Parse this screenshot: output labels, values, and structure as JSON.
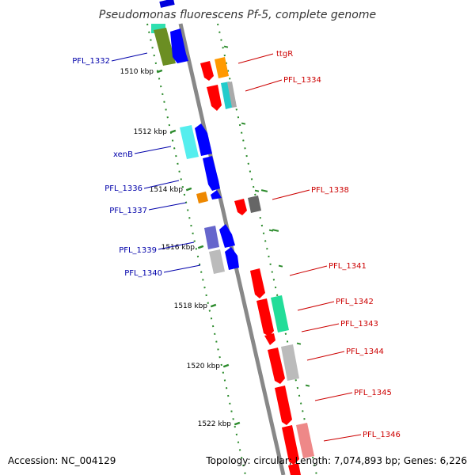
{
  "title": "Pseudomonas fluorescens Pf-5, complete genome",
  "footer": {
    "accession": "Accession: NC_004129",
    "summary": "Topology: circular; Length: 7,074,893 bp; Genes: 6,226"
  },
  "colors": {
    "backbone": "#888888",
    "dots": "#2a8a2a",
    "left_label": "#0000aa",
    "right_label": "#cc0000"
  },
  "scale_ticks": [
    {
      "label": "1510 kbp",
      "kbp": 1510
    },
    {
      "label": "1512 kbp",
      "kbp": 1512
    },
    {
      "label": "1514 kbp",
      "kbp": 1514
    },
    {
      "label": "1516 kbp",
      "kbp": 1516
    },
    {
      "label": "1518 kbp",
      "kbp": 1518
    },
    {
      "label": "1520 kbp",
      "kbp": 1520
    },
    {
      "label": "1522 kbp",
      "kbp": 1522
    }
  ],
  "left_labels": [
    {
      "name": "PFL_1332"
    },
    {
      "name": "xenB"
    },
    {
      "name": "PFL_1336"
    },
    {
      "name": "PFL_1337"
    },
    {
      "name": "PFL_1339"
    },
    {
      "name": "PFL_1340"
    }
  ],
  "right_labels": [
    {
      "name": "ttgR"
    },
    {
      "name": "PFL_1334"
    },
    {
      "name": "PFL_1338"
    },
    {
      "name": "PFL_1341"
    },
    {
      "name": "PFL_1342"
    },
    {
      "name": "PFL_1343"
    },
    {
      "name": "PFL_1344"
    },
    {
      "name": "PFL_1345"
    },
    {
      "name": "PFL_1346"
    }
  ]
}
